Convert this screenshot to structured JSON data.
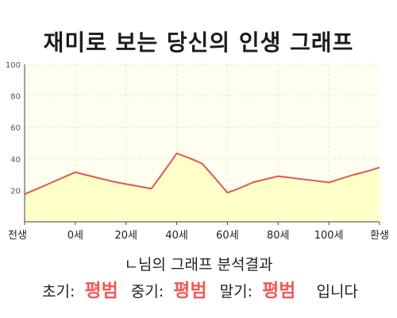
{
  "page": {
    "title": "재미로 보는 당신의 인생 그래프"
  },
  "chart_data": {
    "type": "area",
    "title": "재미로 보는 당신의 인생 그래프",
    "xlabel": "",
    "ylabel": "",
    "categories": [
      "전생",
      "0세",
      "20세",
      "40세",
      "60세",
      "80세",
      "100세",
      "환생"
    ],
    "x": [
      0,
      0.25,
      0.5,
      0.75,
      1,
      1.25,
      1.5,
      1.75,
      2,
      2.25,
      2.5,
      2.75,
      3,
      3.25,
      3.5,
      3.75,
      4,
      4.25,
      4.5,
      4.75,
      5,
      5.25,
      5.5,
      5.75,
      6,
      6.25,
      6.5,
      6.75,
      7
    ],
    "series": [
      {
        "values": [
          17.5,
          21,
          24.5,
          28,
          31.5,
          29.5,
          27.5,
          25.5,
          24,
          22.5,
          21,
          32,
          43.5,
          40.5,
          37,
          28,
          18.5,
          21.5,
          25,
          27,
          29,
          28,
          27,
          26,
          25,
          27.5,
          30,
          32,
          34.5
        ]
      }
    ],
    "ylim": [
      0,
      100
    ],
    "yticks": [
      20,
      40,
      60,
      80,
      100
    ],
    "grid": true,
    "line_color": "#e05858",
    "fill_color": "#ffffc8",
    "plot_background": "#fffff0",
    "grid_color": "#e8e8d8"
  },
  "result": {
    "header": "ㄴ님의 그래프 분석결과",
    "periods": [
      {
        "label": "초기:",
        "value": "평범"
      },
      {
        "label": "중기:",
        "value": "평범"
      },
      {
        "label": "말기:",
        "value": "평범"
      }
    ],
    "ending": "입니다",
    "value_color": "#ee5a5a"
  }
}
